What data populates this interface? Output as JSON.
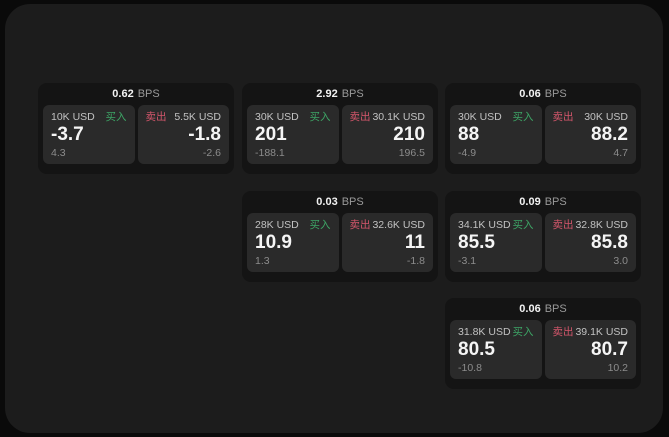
{
  "labels": {
    "buy": "买入",
    "sell": "卖出",
    "bps_unit": "BPS"
  },
  "colors": {
    "outer_background": "#0a0a0a",
    "surface": "#1c1c1c",
    "card_background": "#141414",
    "panel_background": "#2a2a2a",
    "primary_text": "#f5f5f5",
    "secondary_text": "#8c8c8c",
    "buy_green": "#3da666",
    "sell_red": "#d4566b"
  },
  "cards": [
    {
      "bps": "0.62",
      "buy": {
        "amount": "10K USD",
        "value": "-3.7",
        "sub": "4.3"
      },
      "sell": {
        "amount": "5.5K USD",
        "value": "-1.8",
        "sub": "-2.6"
      }
    },
    {
      "bps": "2.92",
      "buy": {
        "amount": "30K USD",
        "value": "201",
        "sub": "-188.1"
      },
      "sell": {
        "amount": "30.1K USD",
        "value": "210",
        "sub": "196.5"
      }
    },
    {
      "bps": "0.06",
      "buy": {
        "amount": "30K USD",
        "value": "88",
        "sub": "-4.9"
      },
      "sell": {
        "amount": "30K USD",
        "value": "88.2",
        "sub": "4.7"
      }
    },
    {
      "bps": "0.03",
      "buy": {
        "amount": "28K USD",
        "value": "10.9",
        "sub": "1.3"
      },
      "sell": {
        "amount": "32.6K USD",
        "value": "11",
        "sub": "-1.8"
      }
    },
    {
      "bps": "0.09",
      "buy": {
        "amount": "34.1K USD",
        "value": "85.5",
        "sub": "-3.1"
      },
      "sell": {
        "amount": "32.8K USD",
        "value": "85.8",
        "sub": "3.0"
      }
    },
    {
      "bps": "0.06",
      "buy": {
        "amount": "31.8K USD",
        "value": "80.5",
        "sub": "-10.8"
      },
      "sell": {
        "amount": "39.1K USD",
        "value": "80.7",
        "sub": "10.2"
      }
    }
  ]
}
